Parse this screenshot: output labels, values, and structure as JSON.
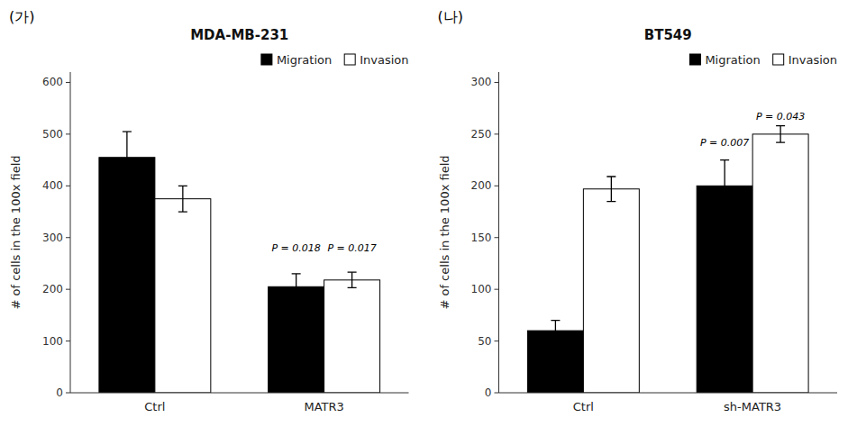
{
  "chart_data": [
    {
      "type": "bar",
      "title": "MDA-MB-231",
      "ylabel": "# of cells in the 100x field",
      "categories": [
        "Ctrl",
        "MATR3"
      ],
      "series": [
        {
          "name": "Migration",
          "color": "#000000",
          "values": [
            455,
            205
          ],
          "errors": [
            50,
            25
          ]
        },
        {
          "name": "Invasion",
          "color": "#ffffff",
          "values": [
            375,
            218
          ],
          "errors": [
            25,
            15
          ]
        }
      ],
      "edge_color": "#000000",
      "ylim": [
        0,
        620
      ],
      "yticks": [
        0,
        100,
        200,
        300,
        400,
        500,
        600
      ],
      "grid": false,
      "legend": "upper right",
      "annotations": [
        {
          "text": "(가)"
        },
        {
          "text": "P = 0.018",
          "category": 1,
          "series": 0,
          "y": 270
        },
        {
          "text": "P = 0.017",
          "category": 1,
          "series": 1,
          "y": 270
        }
      ]
    },
    {
      "type": "bar",
      "title": "BT549",
      "ylabel": "# of cells in the 100x field",
      "categories": [
        "Ctrl",
        "sh-MATR3"
      ],
      "series": [
        {
          "name": "Migration",
          "color": "#000000",
          "values": [
            60,
            200
          ],
          "errors": [
            10,
            25
          ]
        },
        {
          "name": "Invasion",
          "color": "#ffffff",
          "values": [
            197,
            250
          ],
          "errors": [
            12,
            8
          ]
        }
      ],
      "edge_color": "#000000",
      "ylim": [
        0,
        310
      ],
      "yticks": [
        0,
        50,
        100,
        150,
        200,
        250,
        300
      ],
      "grid": false,
      "legend": "upper right",
      "annotations": [
        {
          "text": "(나)"
        },
        {
          "text": "P = 0.007",
          "category": 1,
          "series": 0,
          "y": 237
        },
        {
          "text": "P = 0.043",
          "category": 1,
          "series": 1,
          "y": 262
        }
      ]
    }
  ]
}
